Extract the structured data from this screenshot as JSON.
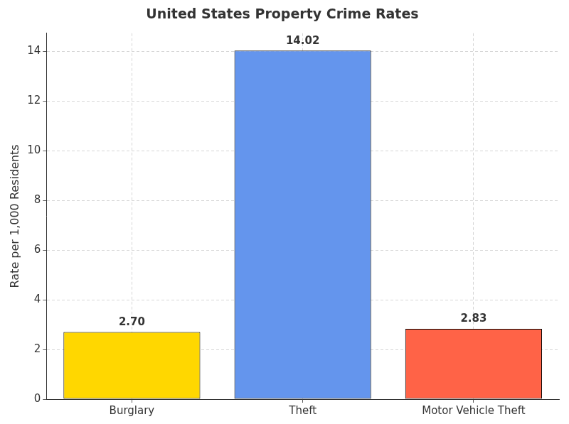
{
  "chart_data": {
    "type": "bar",
    "title": "United States Property Crime Rates",
    "ylabel": "Rate per 1,000 Residents",
    "categories": [
      "Burglary",
      "Theft",
      "Motor Vehicle Theft"
    ],
    "values": [
      2.7,
      14.02,
      2.83
    ],
    "value_labels": [
      "2.70",
      "14.02",
      "2.83"
    ],
    "colors": [
      "#FFD700",
      "#6495ED",
      "#FF6347"
    ],
    "ylim": [
      0,
      14.72
    ],
    "yticks": [
      0,
      2,
      4,
      6,
      8,
      10,
      12,
      14
    ],
    "grid": true,
    "data_labels": true
  }
}
